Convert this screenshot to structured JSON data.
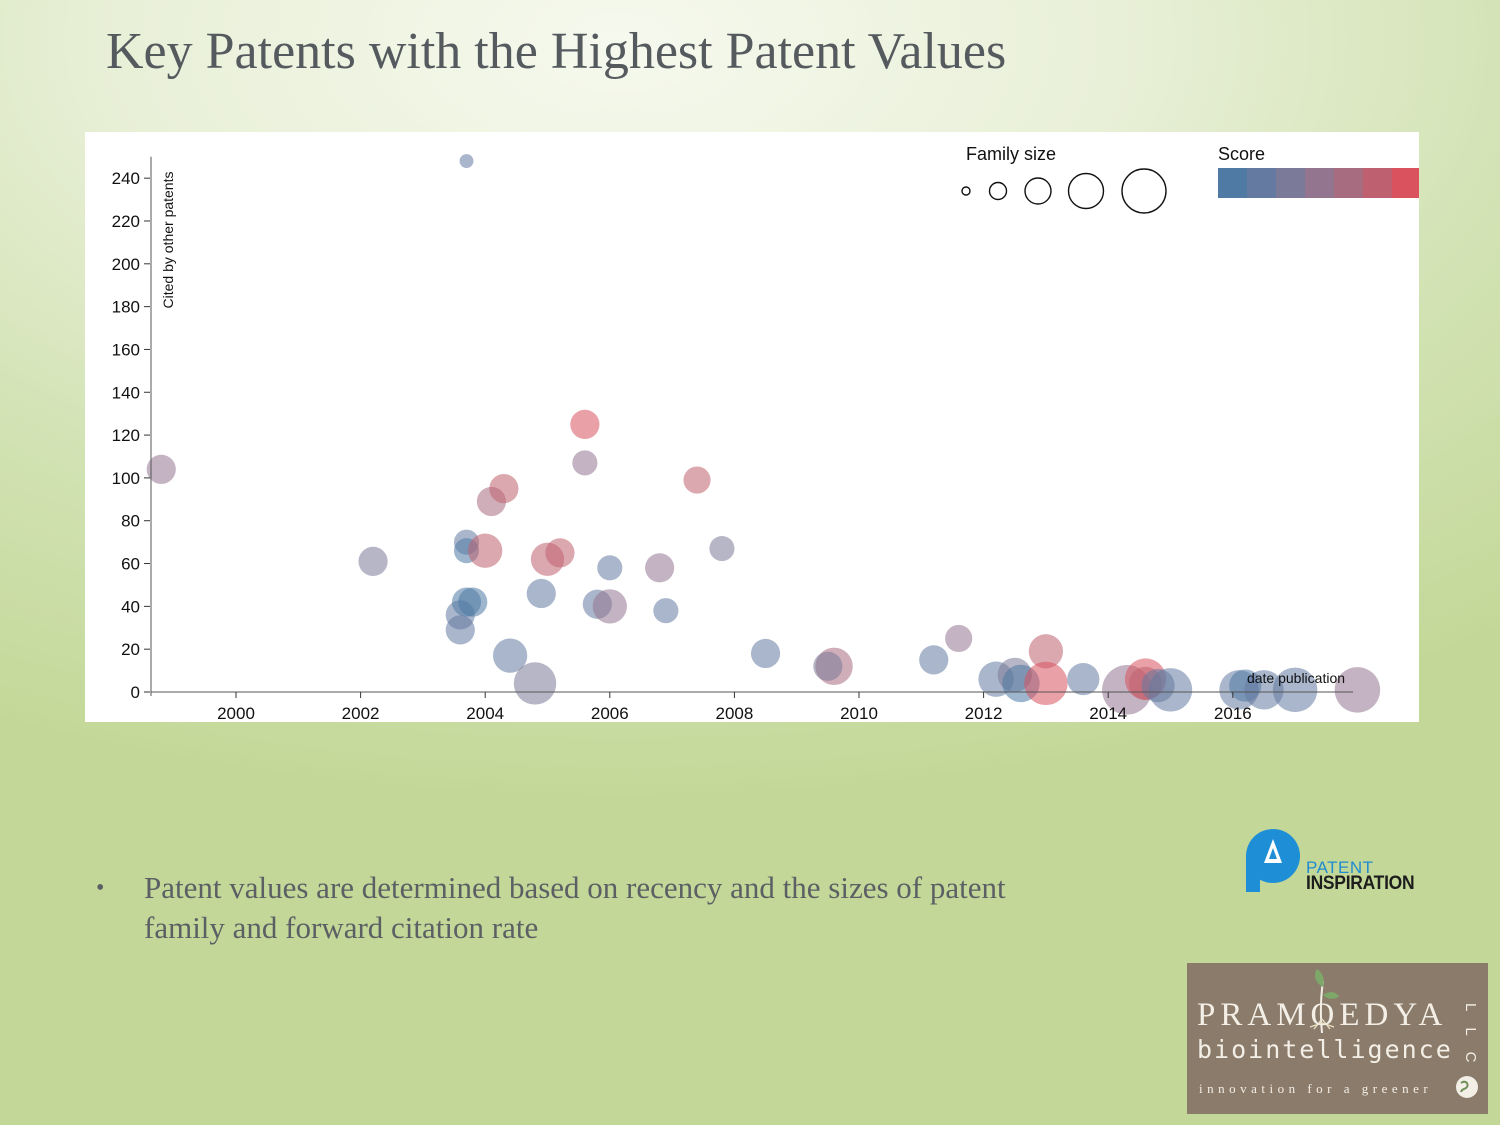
{
  "slide": {
    "title": "Key Patents with the Highest Patent Values",
    "bullet": "Patent values are determined based on recency and the sizes of patent family and forward citation rate",
    "bullet_symbol": "•"
  },
  "logos": {
    "patent_inspiration": {
      "line1": "PATENT",
      "line2": "INSPIRATION",
      "color": "#1f8bd0"
    },
    "pramoedya": {
      "line1": "PRAMOEDYA",
      "line2": "biointelligence",
      "line3": "innovation for a greener",
      "suffix": "LLC"
    }
  },
  "chart_data": {
    "type": "scatter",
    "title": "",
    "xlabel": "date publication",
    "ylabel": "Cited by other patents",
    "xlim": [
      1998.6,
      2018.6
    ],
    "ylim": [
      0,
      250
    ],
    "xticks": [
      2000,
      2002,
      2004,
      2006,
      2008,
      2010,
      2012,
      2014,
      2016
    ],
    "yticks": [
      0,
      20,
      40,
      60,
      80,
      100,
      120,
      140,
      160,
      180,
      200,
      220,
      240
    ],
    "legend": {
      "family_size": {
        "title": "Family size",
        "levels": [
          1,
          2,
          3,
          4,
          5
        ]
      },
      "score": {
        "title": "Score",
        "colors": [
          "#4e7aa4",
          "#647aa0",
          "#7b7a98",
          "#937590",
          "#a86c80",
          "#bf6070",
          "#d9525e"
        ]
      }
    },
    "points": [
      {
        "x": 1998.8,
        "y": 104,
        "size": 2,
        "score": 3
      },
      {
        "x": 2002.2,
        "y": 61,
        "size": 2,
        "score": 2
      },
      {
        "x": 2003.7,
        "y": 248,
        "size": 0.5,
        "score": 1
      },
      {
        "x": 2003.7,
        "y": 70,
        "size": 1.6,
        "score": 1
      },
      {
        "x": 2003.7,
        "y": 66,
        "size": 1.6,
        "score": 0
      },
      {
        "x": 2003.6,
        "y": 36,
        "size": 2,
        "score": 1
      },
      {
        "x": 2003.7,
        "y": 42,
        "size": 2,
        "score": 0
      },
      {
        "x": 2003.6,
        "y": 29,
        "size": 2,
        "score": 1
      },
      {
        "x": 2003.8,
        "y": 42,
        "size": 2,
        "score": 0
      },
      {
        "x": 2004.0,
        "y": 66,
        "size": 2.5,
        "score": 5
      },
      {
        "x": 2004.1,
        "y": 89,
        "size": 2,
        "score": 4
      },
      {
        "x": 2004.3,
        "y": 95,
        "size": 2,
        "score": 5
      },
      {
        "x": 2004.4,
        "y": 17,
        "size": 2.5,
        "score": 1
      },
      {
        "x": 2004.8,
        "y": 4,
        "size": 3.3,
        "score": 2
      },
      {
        "x": 2004.9,
        "y": 46,
        "size": 2,
        "score": 1
      },
      {
        "x": 2005.0,
        "y": 62,
        "size": 2.4,
        "score": 5
      },
      {
        "x": 2005.2,
        "y": 65,
        "size": 2,
        "score": 5
      },
      {
        "x": 2005.6,
        "y": 125,
        "size": 2,
        "score": 6
      },
      {
        "x": 2005.6,
        "y": 107,
        "size": 1.6,
        "score": 3
      },
      {
        "x": 2005.8,
        "y": 41,
        "size": 2,
        "score": 1
      },
      {
        "x": 2006.0,
        "y": 40,
        "size": 2.5,
        "score": 3
      },
      {
        "x": 2006.0,
        "y": 58,
        "size": 1.6,
        "score": 1
      },
      {
        "x": 2006.8,
        "y": 58,
        "size": 2,
        "score": 3
      },
      {
        "x": 2006.9,
        "y": 38,
        "size": 1.6,
        "score": 1
      },
      {
        "x": 2007.4,
        "y": 99,
        "size": 1.8,
        "score": 5
      },
      {
        "x": 2007.8,
        "y": 67,
        "size": 1.6,
        "score": 2
      },
      {
        "x": 2008.5,
        "y": 18,
        "size": 2,
        "score": 1
      },
      {
        "x": 2009.6,
        "y": 12,
        "size": 2.8,
        "score": 4
      },
      {
        "x": 2009.5,
        "y": 12,
        "size": 2,
        "score": 2
      },
      {
        "x": 2011.2,
        "y": 15,
        "size": 2,
        "score": 1
      },
      {
        "x": 2011.6,
        "y": 25,
        "size": 1.8,
        "score": 3
      },
      {
        "x": 2012.2,
        "y": 6,
        "size": 2.6,
        "score": 1
      },
      {
        "x": 2012.5,
        "y": 8,
        "size": 2.5,
        "score": 2
      },
      {
        "x": 2012.6,
        "y": 4,
        "size": 2.8,
        "score": 0
      },
      {
        "x": 2013.0,
        "y": 19,
        "size": 2.5,
        "score": 5
      },
      {
        "x": 2013.0,
        "y": 4,
        "size": 3.4,
        "score": 6
      },
      {
        "x": 2013.6,
        "y": 6,
        "size": 2.3,
        "score": 1
      },
      {
        "x": 2014.3,
        "y": 1,
        "size": 4,
        "score": 3
      },
      {
        "x": 2014.6,
        "y": 6,
        "size": 3.2,
        "score": 6
      },
      {
        "x": 2014.6,
        "y": 4,
        "size": 2.4,
        "score": 5
      },
      {
        "x": 2014.8,
        "y": 3,
        "size": 2.4,
        "score": 1
      },
      {
        "x": 2015.0,
        "y": 1,
        "size": 3.4,
        "score": 1
      },
      {
        "x": 2016.1,
        "y": 1,
        "size": 3,
        "score": 1
      },
      {
        "x": 2016.2,
        "y": 3,
        "size": 2.3,
        "score": 0
      },
      {
        "x": 2016.5,
        "y": 1,
        "size": 3,
        "score": 1
      },
      {
        "x": 2017.0,
        "y": 1,
        "size": 3.5,
        "score": 1
      },
      {
        "x": 2018.0,
        "y": 1,
        "size": 3.6,
        "score": 3
      }
    ]
  }
}
